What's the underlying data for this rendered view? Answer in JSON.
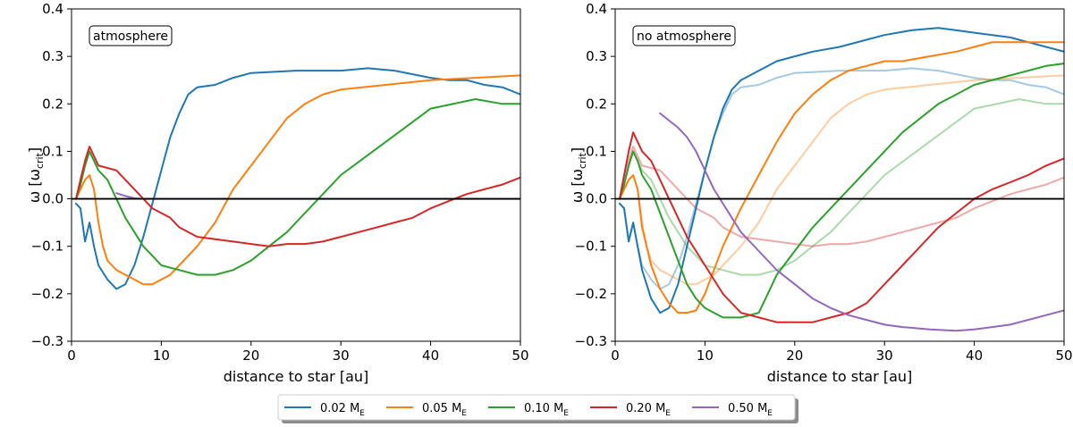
{
  "chart_data": [
    {
      "type": "line",
      "panel": "left",
      "annotation": "atmosphere",
      "xlabel": "distance to star [au]",
      "ylabel_main": "ω [ω",
      "ylabel_sub": "crit",
      "ylabel_end": "]",
      "xlim": [
        0,
        50
      ],
      "ylim": [
        -0.3,
        0.4
      ],
      "xticks": [
        0,
        10,
        20,
        30,
        40,
        50
      ],
      "yticks": [
        -0.3,
        -0.2,
        -0.1,
        0.0,
        0.1,
        0.2,
        0.3,
        0.4
      ],
      "ytick_labels": [
        "−0.3",
        "−0.2",
        "−0.1",
        "0.0",
        "0.1",
        "0.2",
        "0.3",
        "0.4"
      ],
      "reference_line": 0.0,
      "series": [
        {
          "name": "0.02 M_E",
          "color": "#1f77b4",
          "alpha": 1,
          "x": [
            0.5,
            1,
            1.5,
            2,
            2.5,
            3,
            4,
            5,
            6,
            7,
            8,
            9,
            10,
            11,
            12,
            13,
            14,
            16,
            18,
            20,
            25,
            30,
            33,
            36,
            40,
            42,
            44,
            46,
            48,
            50
          ],
          "y": [
            -0.01,
            -0.02,
            -0.09,
            -0.05,
            -0.1,
            -0.14,
            -0.17,
            -0.19,
            -0.18,
            -0.14,
            -0.08,
            -0.01,
            0.06,
            0.13,
            0.18,
            0.22,
            0.235,
            0.24,
            0.255,
            0.265,
            0.27,
            0.27,
            0.275,
            0.27,
            0.255,
            0.25,
            0.25,
            0.24,
            0.235,
            0.22
          ]
        },
        {
          "name": "0.05 M_E",
          "color": "#ff7f0e",
          "alpha": 1,
          "x": [
            0.5,
            1,
            1.5,
            2,
            2.5,
            3,
            3.5,
            4,
            5,
            6,
            7,
            8,
            9,
            10,
            11,
            12,
            14,
            16,
            18,
            20,
            22,
            24,
            26,
            28,
            30,
            35,
            40,
            45,
            50
          ],
          "y": [
            0.0,
            0.02,
            0.04,
            0.05,
            0.02,
            -0.05,
            -0.1,
            -0.13,
            -0.15,
            -0.16,
            -0.17,
            -0.18,
            -0.18,
            -0.17,
            -0.16,
            -0.14,
            -0.1,
            -0.05,
            0.02,
            0.07,
            0.12,
            0.17,
            0.2,
            0.22,
            0.23,
            0.24,
            0.25,
            0.255,
            0.26
          ]
        },
        {
          "name": "0.10 M_E",
          "color": "#2ca02c",
          "alpha": 1,
          "x": [
            0.5,
            1,
            1.5,
            2,
            2.5,
            3,
            4,
            5,
            6,
            7,
            8,
            9,
            10,
            12,
            14,
            16,
            18,
            20,
            22,
            24,
            26,
            28,
            30,
            35,
            40,
            45,
            48,
            50
          ],
          "y": [
            0.0,
            0.03,
            0.07,
            0.1,
            0.08,
            0.06,
            0.04,
            0.0,
            -0.04,
            -0.07,
            -0.1,
            -0.12,
            -0.14,
            -0.15,
            -0.16,
            -0.16,
            -0.15,
            -0.13,
            -0.1,
            -0.07,
            -0.03,
            0.01,
            0.05,
            0.12,
            0.19,
            0.21,
            0.2,
            0.2
          ]
        },
        {
          "name": "0.20 M_E",
          "color": "#d62728",
          "alpha": 1,
          "x": [
            0.5,
            1,
            1.5,
            2,
            2.5,
            3,
            4,
            5,
            6,
            7,
            8,
            9,
            10,
            11,
            12,
            14,
            16,
            18,
            20,
            22,
            24,
            26,
            28,
            30,
            32,
            34,
            36,
            38,
            40,
            42,
            44,
            46,
            48,
            50
          ],
          "y": [
            0.0,
            0.04,
            0.08,
            0.11,
            0.09,
            0.07,
            0.065,
            0.06,
            0.04,
            0.02,
            0.0,
            -0.02,
            -0.03,
            -0.04,
            -0.06,
            -0.08,
            -0.085,
            -0.09,
            -0.095,
            -0.1,
            -0.095,
            -0.095,
            -0.09,
            -0.08,
            -0.07,
            -0.06,
            -0.05,
            -0.04,
            -0.02,
            -0.005,
            0.01,
            0.02,
            0.03,
            0.045
          ]
        },
        {
          "name": "0.50 M_E",
          "color": "#9467bd",
          "alpha": 1,
          "x": [
            5,
            6,
            7,
            8,
            9,
            10,
            20,
            30,
            40,
            50
          ],
          "y": [
            0.012,
            0.006,
            0.001,
            0.0,
            0.0,
            0.0,
            0.0,
            0.0,
            0.0,
            0.0
          ]
        }
      ]
    },
    {
      "type": "line",
      "panel": "right",
      "annotation": "no atmosphere",
      "xlabel": "distance to star [au]",
      "ylabel_main": "ω [ω",
      "ylabel_sub": "crit",
      "ylabel_end": "]",
      "xlim": [
        0,
        50
      ],
      "ylim": [
        -0.3,
        0.4
      ],
      "xticks": [
        0,
        10,
        20,
        30,
        40,
        50
      ],
      "yticks": [
        -0.3,
        -0.2,
        -0.1,
        0.0,
        0.1,
        0.2,
        0.3,
        0.4
      ],
      "ytick_labels": [
        "−0.3",
        "−0.2",
        "−0.1",
        "0.0",
        "0.1",
        "0.2",
        "0.3",
        "0.4"
      ],
      "reference_line": 0.0,
      "series": [
        {
          "name": "0.02 M_E (atmosphere, faded)",
          "color": "#1f77b4",
          "alpha": 0.4,
          "x": [
            0.5,
            1,
            1.5,
            2,
            2.5,
            3,
            4,
            5,
            6,
            7,
            8,
            9,
            10,
            11,
            12,
            13,
            14,
            16,
            18,
            20,
            25,
            30,
            33,
            36,
            40,
            42,
            44,
            46,
            48,
            50
          ],
          "y": [
            -0.01,
            -0.02,
            -0.09,
            -0.05,
            -0.1,
            -0.14,
            -0.17,
            -0.19,
            -0.18,
            -0.14,
            -0.08,
            -0.01,
            0.06,
            0.13,
            0.18,
            0.22,
            0.235,
            0.24,
            0.255,
            0.265,
            0.27,
            0.27,
            0.275,
            0.27,
            0.255,
            0.25,
            0.25,
            0.24,
            0.235,
            0.22
          ]
        },
        {
          "name": "0.05 M_E (atmosphere, faded)",
          "color": "#ff7f0e",
          "alpha": 0.4,
          "x": [
            0.5,
            1,
            1.5,
            2,
            2.5,
            3,
            3.5,
            4,
            5,
            6,
            7,
            8,
            9,
            10,
            11,
            12,
            14,
            16,
            18,
            20,
            22,
            24,
            26,
            28,
            30,
            35,
            40,
            45,
            50
          ],
          "y": [
            0.0,
            0.02,
            0.04,
            0.05,
            0.02,
            -0.05,
            -0.1,
            -0.13,
            -0.15,
            -0.16,
            -0.17,
            -0.18,
            -0.18,
            -0.17,
            -0.16,
            -0.14,
            -0.1,
            -0.05,
            0.02,
            0.07,
            0.12,
            0.17,
            0.2,
            0.22,
            0.23,
            0.24,
            0.25,
            0.255,
            0.26
          ]
        },
        {
          "name": "0.10 M_E (atmosphere, faded)",
          "color": "#2ca02c",
          "alpha": 0.4,
          "x": [
            0.5,
            1,
            1.5,
            2,
            2.5,
            3,
            4,
            5,
            6,
            7,
            8,
            9,
            10,
            12,
            14,
            16,
            18,
            20,
            22,
            24,
            26,
            28,
            30,
            35,
            40,
            45,
            48,
            50
          ],
          "y": [
            0.0,
            0.03,
            0.07,
            0.1,
            0.08,
            0.06,
            0.04,
            0.0,
            -0.04,
            -0.07,
            -0.1,
            -0.12,
            -0.14,
            -0.15,
            -0.16,
            -0.16,
            -0.15,
            -0.13,
            -0.1,
            -0.07,
            -0.03,
            0.01,
            0.05,
            0.12,
            0.19,
            0.21,
            0.2,
            0.2
          ]
        },
        {
          "name": "0.20 M_E (atmosphere, faded)",
          "color": "#d62728",
          "alpha": 0.4,
          "x": [
            0.5,
            1,
            1.5,
            2,
            2.5,
            3,
            4,
            5,
            6,
            7,
            8,
            9,
            10,
            11,
            12,
            14,
            16,
            18,
            20,
            22,
            24,
            26,
            28,
            30,
            32,
            34,
            36,
            38,
            40,
            42,
            44,
            46,
            48,
            50
          ],
          "y": [
            0.0,
            0.04,
            0.08,
            0.11,
            0.09,
            0.07,
            0.065,
            0.06,
            0.04,
            0.02,
            0.0,
            -0.02,
            -0.03,
            -0.04,
            -0.06,
            -0.08,
            -0.085,
            -0.09,
            -0.095,
            -0.1,
            -0.095,
            -0.095,
            -0.09,
            -0.08,
            -0.07,
            -0.06,
            -0.05,
            -0.04,
            -0.02,
            -0.005,
            0.01,
            0.02,
            0.03,
            0.045
          ]
        },
        {
          "name": "0.02 M_E",
          "color": "#1f77b4",
          "alpha": 1,
          "x": [
            0.5,
            1,
            1.5,
            2,
            2.5,
            3,
            4,
            5,
            6,
            7,
            8,
            9,
            10,
            11,
            12,
            13,
            14,
            16,
            18,
            20,
            22,
            25,
            28,
            30,
            33,
            36,
            38,
            40,
            42,
            44,
            46,
            48,
            50
          ],
          "y": [
            -0.01,
            -0.02,
            -0.09,
            -0.05,
            -0.1,
            -0.15,
            -0.21,
            -0.24,
            -0.23,
            -0.18,
            -0.1,
            -0.02,
            0.06,
            0.13,
            0.19,
            0.23,
            0.25,
            0.27,
            0.29,
            0.3,
            0.31,
            0.32,
            0.335,
            0.345,
            0.355,
            0.36,
            0.355,
            0.35,
            0.345,
            0.34,
            0.33,
            0.32,
            0.31
          ]
        },
        {
          "name": "0.05 M_E",
          "color": "#ff7f0e",
          "alpha": 1,
          "x": [
            0.5,
            1,
            1.5,
            2,
            2.5,
            3,
            4,
            5,
            6,
            7,
            8,
            9,
            10,
            11,
            12,
            14,
            16,
            18,
            20,
            22,
            24,
            26,
            28,
            30,
            32,
            35,
            38,
            40,
            42,
            44,
            46,
            48,
            50
          ],
          "y": [
            0.0,
            0.02,
            0.04,
            0.05,
            0.02,
            -0.06,
            -0.14,
            -0.19,
            -0.22,
            -0.24,
            -0.24,
            -0.235,
            -0.2,
            -0.15,
            -0.1,
            -0.02,
            0.05,
            0.12,
            0.18,
            0.22,
            0.25,
            0.27,
            0.28,
            0.29,
            0.29,
            0.3,
            0.31,
            0.32,
            0.33,
            0.33,
            0.33,
            0.33,
            0.33
          ]
        },
        {
          "name": "0.10 M_E",
          "color": "#2ca02c",
          "alpha": 1,
          "x": [
            0.5,
            1,
            1.5,
            2,
            2.5,
            3,
            4,
            5,
            6,
            7,
            8,
            9,
            10,
            11,
            12,
            13,
            14,
            15,
            16,
            17,
            18,
            20,
            22,
            24,
            26,
            28,
            30,
            32,
            34,
            36,
            38,
            40,
            42,
            44,
            46,
            48,
            50
          ],
          "y": [
            0.0,
            0.03,
            0.07,
            0.1,
            0.08,
            0.05,
            0.02,
            -0.03,
            -0.08,
            -0.13,
            -0.18,
            -0.21,
            -0.23,
            -0.24,
            -0.25,
            -0.25,
            -0.25,
            -0.245,
            -0.24,
            -0.2,
            -0.16,
            -0.11,
            -0.06,
            -0.02,
            0.02,
            0.06,
            0.1,
            0.14,
            0.17,
            0.2,
            0.22,
            0.24,
            0.25,
            0.26,
            0.27,
            0.28,
            0.285
          ]
        },
        {
          "name": "0.20 M_E",
          "color": "#d62728",
          "alpha": 1,
          "x": [
            0.5,
            1,
            1.5,
            2,
            2.5,
            3,
            4,
            5,
            6,
            7,
            8,
            9,
            10,
            11,
            12,
            13,
            14,
            16,
            18,
            20,
            22,
            24,
            26,
            28,
            30,
            32,
            34,
            36,
            38,
            40,
            42,
            44,
            46,
            48,
            50
          ],
          "y": [
            0.0,
            0.05,
            0.1,
            0.14,
            0.12,
            0.1,
            0.08,
            0.04,
            0.0,
            -0.04,
            -0.08,
            -0.11,
            -0.14,
            -0.17,
            -0.2,
            -0.22,
            -0.24,
            -0.25,
            -0.26,
            -0.26,
            -0.26,
            -0.25,
            -0.24,
            -0.22,
            -0.18,
            -0.14,
            -0.1,
            -0.06,
            -0.03,
            0.0,
            0.02,
            0.035,
            0.05,
            0.07,
            0.085
          ]
        },
        {
          "name": "0.50 M_E",
          "color": "#9467bd",
          "alpha": 1,
          "x": [
            5,
            6,
            7,
            8,
            9,
            10,
            11,
            12,
            13,
            14,
            16,
            18,
            20,
            22,
            24,
            26,
            28,
            30,
            32,
            35,
            38,
            40,
            42,
            44,
            46,
            48,
            50
          ],
          "y": [
            0.18,
            0.165,
            0.15,
            0.13,
            0.1,
            0.06,
            0.02,
            -0.01,
            -0.04,
            -0.07,
            -0.11,
            -0.15,
            -0.18,
            -0.21,
            -0.23,
            -0.245,
            -0.255,
            -0.265,
            -0.27,
            -0.275,
            -0.278,
            -0.275,
            -0.27,
            -0.265,
            -0.255,
            -0.245,
            -0.235
          ]
        }
      ]
    }
  ],
  "legend": {
    "placement": "bottom-center",
    "entries": [
      {
        "label": "0.02 M",
        "sub": "E",
        "color": "#1f77b4"
      },
      {
        "label": "0.05 M",
        "sub": "E",
        "color": "#ff7f0e"
      },
      {
        "label": "0.10 M",
        "sub": "E",
        "color": "#2ca02c"
      },
      {
        "label": "0.20 M",
        "sub": "E",
        "color": "#d62728"
      },
      {
        "label": "0.50 M",
        "sub": "E",
        "color": "#9467bd"
      }
    ]
  }
}
